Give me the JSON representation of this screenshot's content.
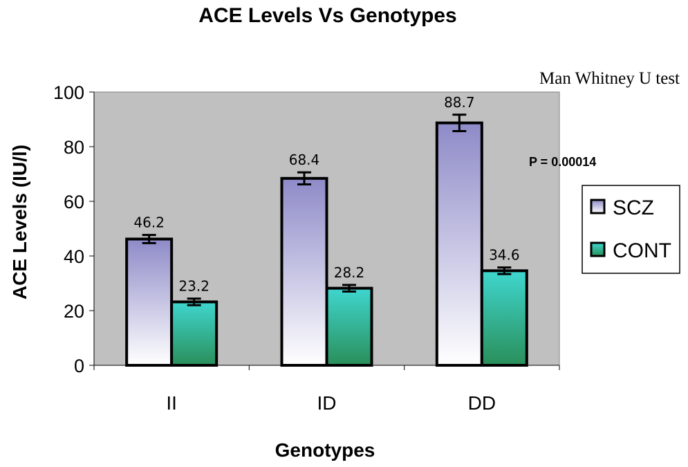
{
  "chart_data": {
    "type": "bar",
    "title": "ACE Levels Vs Genotypes",
    "xlabel": "Genotypes",
    "ylabel": "ACE Levels (IU/l)",
    "categories": [
      "II",
      "ID",
      "DD"
    ],
    "series": [
      {
        "name": "SCZ",
        "values": [
          46.2,
          68.4,
          88.7
        ],
        "errors": [
          1.5,
          2.2,
          3.0
        ],
        "labels": [
          "46.2",
          "68.4",
          "88.7"
        ]
      },
      {
        "name": "CONT",
        "values": [
          23.2,
          28.2,
          34.6
        ],
        "errors": [
          1.2,
          1.2,
          1.2
        ],
        "labels": [
          "23.2",
          "28.2",
          "34.6"
        ]
      }
    ],
    "ylim": [
      0,
      100
    ],
    "yticks": [
      0,
      20,
      40,
      60,
      80,
      100
    ],
    "ytick_labels": [
      "0",
      "20",
      "40",
      "60",
      "80",
      "100"
    ],
    "grid": false,
    "legend_position": "right",
    "annotations": {
      "test": "Man Whitney U test",
      "p_value": "P = 0.00014"
    },
    "colors": {
      "plot_background": "#c0c0c0",
      "scz_top": "#8e8ac8",
      "scz_bottom": "#ffffff",
      "cont_top": "#3fd6cf",
      "cont_bottom": "#2a8f5a",
      "outline": "#000000"
    }
  }
}
